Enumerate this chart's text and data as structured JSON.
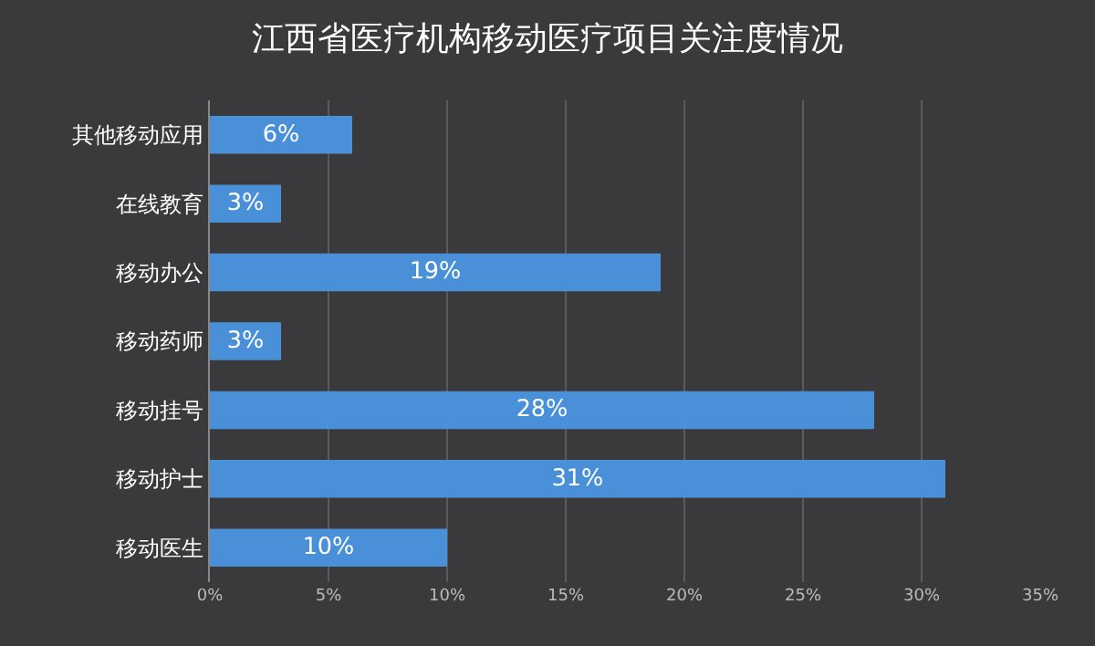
{
  "chart_data": {
    "type": "bar",
    "orientation": "horizontal",
    "title": "江西省医疗机构移动医疗项目关注度情况",
    "categories": [
      "其他移动应用",
      "在线教育",
      "移动办公",
      "移动药师",
      "移动挂号",
      "移动护士",
      "移动医生"
    ],
    "values": [
      6,
      3,
      19,
      3,
      28,
      31,
      10
    ],
    "value_labels": [
      "6%",
      "3%",
      "19%",
      "3%",
      "28%",
      "31%",
      "10%"
    ],
    "color": "#4a90d9",
    "xlim": [
      0,
      35
    ],
    "xticks": [
      {
        "value": 0,
        "label": "0%"
      },
      {
        "value": 5,
        "label": "5%"
      },
      {
        "value": 10,
        "label": "10%"
      },
      {
        "value": 15,
        "label": "15%"
      },
      {
        "value": 20,
        "label": "20%"
      },
      {
        "value": 25,
        "label": "25%"
      },
      {
        "value": 30,
        "label": "30%"
      },
      {
        "value": 35,
        "label": "35%"
      }
    ],
    "grid": "x",
    "legend": false
  }
}
